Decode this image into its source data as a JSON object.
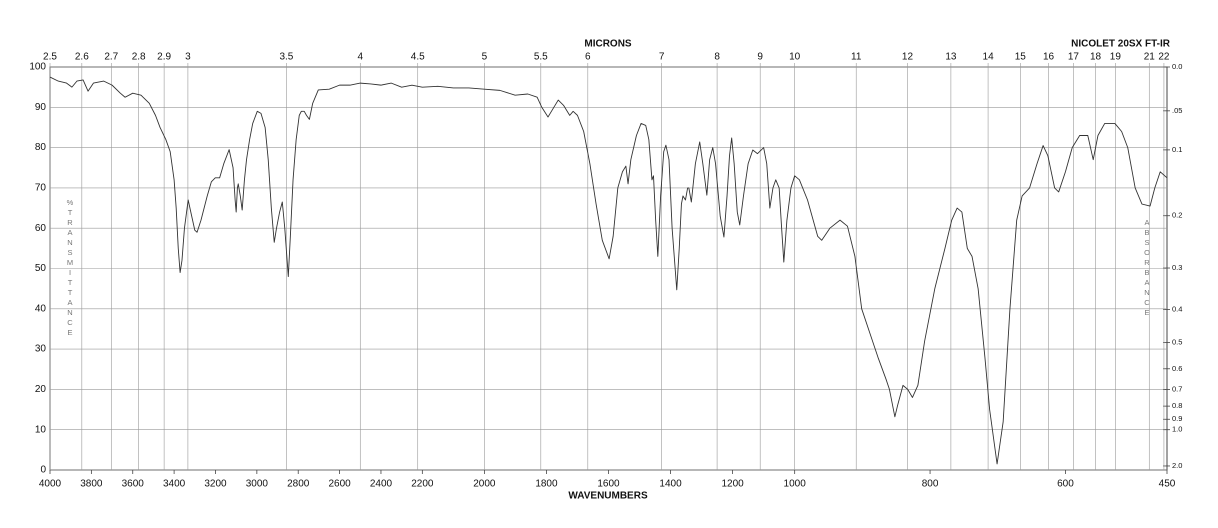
{
  "chart_data": {
    "type": "line",
    "title": "NICOLET 20SX FT-IR",
    "xlabel": "WAVENUMBERS",
    "x2label": "MICRONS",
    "ylabel": "%TRANSMITTANCE",
    "y2label": "ABSORBANCE",
    "color": "#333333",
    "xlim": [
      4000,
      450
    ],
    "xbreaks": [
      2200,
      1000
    ],
    "xticks": [
      4000,
      3800,
      3600,
      3400,
      3200,
      3000,
      2800,
      2600,
      2400,
      2200,
      2000,
      1800,
      1600,
      1400,
      1200,
      1000,
      800,
      600,
      450
    ],
    "x2scale": "microns",
    "x2ticks": [
      2.5,
      2.6,
      2.7,
      2.8,
      2.9,
      3,
      3.5,
      4,
      4.5,
      5,
      5.5,
      6,
      7,
      8,
      9,
      10,
      11,
      12,
      13,
      14,
      15,
      16,
      17,
      18,
      19,
      21,
      22
    ],
    "ylim": [
      0,
      100
    ],
    "yticks": [
      0,
      10,
      20,
      30,
      40,
      50,
      60,
      70,
      80,
      90,
      100
    ],
    "y2scale": "absorbance",
    "y2ticks": [
      {
        "value": 0,
        "label": "0.0"
      },
      {
        "value": 0.05,
        "label": ".05"
      },
      0.1,
      0.2,
      0.3,
      0.4,
      0.5,
      0.6,
      0.7,
      0.8,
      0.9,
      {
        "value": 1,
        "label": "1.0"
      },
      {
        "value": 2,
        "label": "2.0"
      }
    ],
    "grid": true,
    "x": [
      4000,
      3960,
      3920,
      3894,
      3870,
      3840,
      3816,
      3790,
      3740,
      3700,
      3660,
      3637,
      3600,
      3560,
      3520,
      3490,
      3468,
      3440,
      3419,
      3400,
      3390,
      3380,
      3371,
      3362,
      3350,
      3332,
      3315,
      3300,
      3289,
      3270,
      3240,
      3220,
      3201,
      3180,
      3160,
      3134,
      3115,
      3105,
      3100,
      3094,
      3090,
      3080,
      3071,
      3060,
      3050,
      3035,
      3020,
      2998,
      2980,
      2960,
      2945,
      2930,
      2916,
      2905,
      2890,
      2877,
      2865,
      2848,
      2838,
      2825,
      2810,
      2795,
      2785,
      2771,
      2760,
      2746,
      2730,
      2703,
      2650,
      2600,
      2550,
      2500,
      2450,
      2400,
      2350,
      2300,
      2250,
      2200,
      2150,
      2100,
      2050,
      2000,
      1950,
      1901,
      1860,
      1830,
      1815,
      1795,
      1780,
      1762,
      1745,
      1725,
      1714,
      1700,
      1680,
      1660,
      1640,
      1620,
      1598,
      1585,
      1570,
      1555,
      1544,
      1537,
      1528,
      1510,
      1495,
      1480,
      1470,
      1460,
      1455,
      1448,
      1441,
      1432,
      1422,
      1415,
      1405,
      1395,
      1380,
      1372,
      1365,
      1360,
      1352,
      1345,
      1341,
      1333,
      1320,
      1306,
      1296,
      1283,
      1274,
      1264,
      1255,
      1240,
      1228,
      1218,
      1210,
      1203,
      1195,
      1185,
      1177,
      1165,
      1150,
      1135,
      1120,
      1100,
      1090,
      1080,
      1070,
      1061,
      1050,
      1042,
      1035,
      1025,
      1012,
      1000,
      993,
      981,
      966,
      960,
      948,
      933,
      922,
      911,
      901,
      889,
      877,
      865,
      860,
      852,
      848,
      840,
      833,
      826,
      818,
      808,
      793,
      778,
      768,
      760,
      753,
      745,
      738,
      729,
      719,
      712,
      701,
      692,
      682,
      672,
      664,
      653,
      642,
      633,
      626,
      616,
      610,
      600,
      590,
      579,
      567,
      559,
      552,
      542,
      527,
      517,
      508,
      497,
      487,
      475,
      468,
      460,
      450
    ],
    "values": [
      97.5,
      96.5,
      96,
      95,
      96.5,
      96.8,
      94,
      96,
      96.5,
      95.5,
      93.5,
      92.5,
      93.5,
      93,
      91,
      88,
      85,
      82,
      79,
      72,
      65,
      55,
      49,
      52,
      60,
      67,
      63,
      59.5,
      59,
      62,
      68,
      71.5,
      72.5,
      72.5,
      76,
      79.5,
      75,
      67,
      64,
      70,
      71,
      68,
      64.5,
      72,
      77,
      82,
      86,
      89,
      88.5,
      85,
      77,
      65,
      56.5,
      60,
      64,
      66.5,
      60,
      48,
      58,
      72,
      82,
      88,
      89,
      89,
      88,
      87,
      91,
      94.3,
      94.5,
      95.5,
      95.5,
      96,
      95.8,
      95.5,
      96,
      95,
      95.5,
      95,
      95.2,
      94.8,
      94.8,
      94.5,
      94.2,
      93,
      93.3,
      92.5,
      90,
      87.6,
      89.5,
      91.8,
      90.5,
      88,
      89,
      88,
      84,
      76,
      66,
      57,
      52.4,
      58,
      70,
      74,
      75.4,
      71,
      77,
      83,
      86,
      85.5,
      82,
      72,
      73,
      62,
      53,
      68,
      79,
      80.6,
      77,
      60,
      44.7,
      55,
      66,
      68,
      67,
      70,
      70,
      66.5,
      76,
      81.4,
      76,
      68.2,
      77,
      80,
      76,
      63,
      57.8,
      68,
      78,
      82.4,
      76,
      64,
      60.8,
      68,
      76,
      79.4,
      78.5,
      80,
      76,
      65,
      70,
      72,
      70,
      60,
      51.6,
      62,
      70,
      73,
      72,
      67,
      58,
      57,
      60,
      62,
      60.5,
      53,
      40,
      34,
      28,
      22.5,
      20,
      13.2,
      16,
      21,
      20,
      18,
      21,
      32,
      45,
      55,
      62,
      65,
      64,
      55,
      53,
      45,
      28,
      15,
      1.5,
      12,
      40,
      62,
      68,
      70,
      76,
      80.5,
      78,
      70,
      69,
      74,
      80,
      83,
      83,
      77,
      83,
      86,
      86,
      84,
      80,
      70,
      66,
      65.5,
      70,
      74,
      72.5
    ]
  }
}
